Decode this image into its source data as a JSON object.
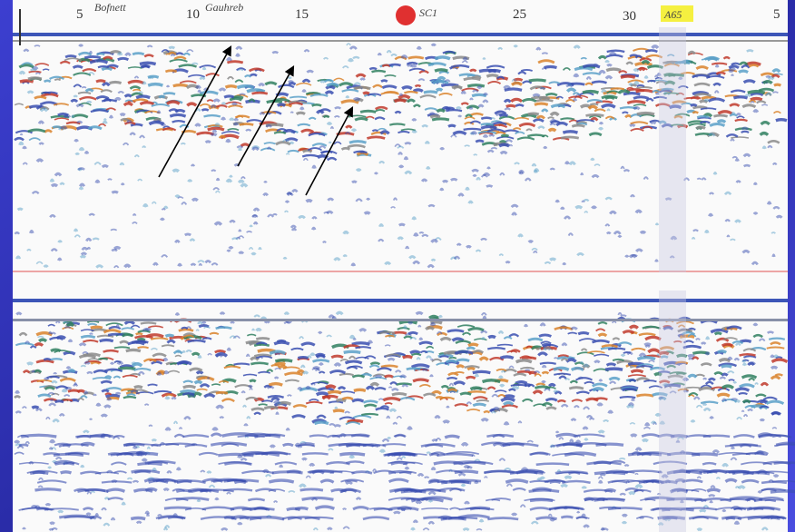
{
  "header": {
    "markers": [
      "5",
      "10",
      "15",
      "25",
      "30",
      "5"
    ],
    "notes": [
      "Bofnett",
      "Gauhreb",
      "SC1",
      "A65"
    ]
  }
}
